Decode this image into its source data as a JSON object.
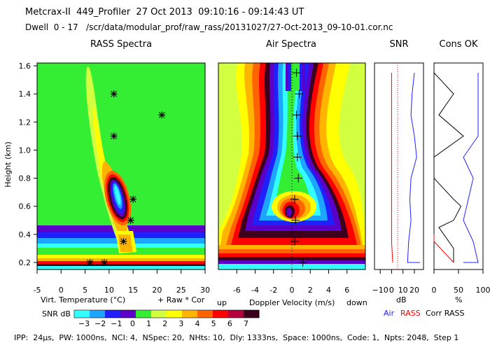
{
  "header": {
    "line1": "Metcrax-II  449_Profiler  27 Oct 2013  09:10:16 - 09:14:43 UT",
    "line2": "Dwell  0 - 17   /scr/data/modular_prof/raw_rass/20131027/27-Oct-2013_09-10-01.cor.nc"
  },
  "footer": "IPP:  24μs,  PW: 1000ns,  NCI: 4,  NSpec: 20,  NHts: 10,  Dly: 1333ns,  Space: 1000ns,  Code: 1,  Npts: 2048,  Step 1",
  "colors": {
    "background_field": "#33ee33",
    "scale": [
      "#33ffff",
      "#1ea5ff",
      "#2020ff",
      "#5a00c8",
      "#33ee33",
      "#d2ff40",
      "#ffff00",
      "#ffb400",
      "#ff6400",
      "#ff0000",
      "#b4003c",
      "#3c001e"
    ]
  },
  "chart_data": [
    {
      "type": "heatmap",
      "title": "RASS Spectra",
      "ylabel": "Height (km)",
      "xlabel": "Virt. Temperature (°C)",
      "xlabel_suffix": "+ Raw  * Cor",
      "xlim": [
        -5,
        30
      ],
      "ylim": [
        0.15,
        1.62
      ],
      "xticks": [
        "-5",
        "0",
        "5",
        "10",
        "15",
        "20",
        "25",
        "30"
      ],
      "yticks": [
        "0.2",
        "0.4",
        "0.6",
        "0.8",
        "1.0",
        "1.2",
        "1.4",
        "1.6"
      ],
      "raw_points": [
        {
          "x": 11,
          "y": 1.4
        },
        {
          "x": 21,
          "y": 1.25
        },
        {
          "x": 11,
          "y": 1.1
        },
        {
          "x": 15,
          "y": 0.65
        },
        {
          "x": 14.5,
          "y": 0.5
        },
        {
          "x": 13,
          "y": 0.35
        },
        {
          "x": 9,
          "y": 0.2
        }
      ],
      "cor_points": [
        {
          "x": 11,
          "y": 1.4
        },
        {
          "x": 21,
          "y": 1.25
        },
        {
          "x": 11,
          "y": 1.1
        },
        {
          "x": 15,
          "y": 0.65
        },
        {
          "x": 14.5,
          "y": 0.5
        },
        {
          "x": 13,
          "y": 0.35
        },
        {
          "x": 9,
          "y": 0.2
        },
        {
          "x": 6,
          "y": 0.2
        }
      ]
    },
    {
      "type": "heatmap",
      "title": "Air Spectra",
      "xlabel": "Doppler Velocity (m/s)",
      "xlabel_left": "up",
      "xlabel_right": "down",
      "xlim": [
        -8,
        8
      ],
      "ylim": [
        0.15,
        1.62
      ],
      "xticks": [
        "-6",
        "-4",
        "-2",
        "0",
        "2",
        "4",
        "6"
      ],
      "points": [
        {
          "x": 0.5,
          "y": 1.55
        },
        {
          "x": 0.8,
          "y": 1.4
        },
        {
          "x": 0.5,
          "y": 1.25
        },
        {
          "x": 0.6,
          "y": 1.1
        },
        {
          "x": 0.6,
          "y": 0.95
        },
        {
          "x": 0.7,
          "y": 0.8
        },
        {
          "x": 0.3,
          "y": 0.65
        },
        {
          "x": 0.4,
          "y": 0.5
        },
        {
          "x": 0.3,
          "y": 0.35
        },
        {
          "x": 1.2,
          "y": 0.2
        }
      ]
    },
    {
      "type": "line",
      "title": "SNR",
      "xlabel": "dB",
      "xticks": [
        "−10",
        "0",
        "10",
        "20"
      ],
      "xlim": [
        -15,
        28
      ],
      "ylim": [
        0.15,
        1.62
      ],
      "series": [
        {
          "name": "Air",
          "color": "#2020ff",
          "x": [
            20,
            18,
            17,
            20,
            22,
            17,
            16,
            17,
            15,
            14,
            17,
            20,
            25,
            21
          ],
          "y": [
            1.55,
            1.4,
            1.25,
            1.1,
            0.95,
            0.8,
            0.65,
            0.5,
            0.35,
            0.2,
            0.2,
            0.2,
            0.2,
            0.2
          ]
        },
        {
          "name": "RASS",
          "color": "#ff0000",
          "x": [
            0,
            0,
            0,
            0,
            0,
            0,
            0,
            0,
            0,
            1
          ],
          "y": [
            1.55,
            1.4,
            1.25,
            1.1,
            0.95,
            0.8,
            0.65,
            0.5,
            0.35,
            0.2
          ]
        }
      ]
    },
    {
      "type": "line",
      "title": "Cons OK",
      "xlabel": "%",
      "xticks": [
        "0",
        "50",
        "100"
      ],
      "xlim": [
        0,
        100
      ],
      "ylim": [
        0.15,
        1.62
      ],
      "series": [
        {
          "name": "Corr RASS",
          "color": "#000000",
          "x": [
            0,
            40,
            10,
            60,
            0,
            0,
            0,
            40,
            55,
            40,
            10,
            40,
            40
          ],
          "y": [
            1.55,
            1.4,
            1.25,
            1.1,
            0.95,
            0.85,
            0.8,
            0.65,
            0.6,
            0.5,
            0.45,
            0.3,
            0.2
          ]
        },
        {
          "name": "Air",
          "color": "#2020ff",
          "x": [
            90,
            90,
            90,
            90,
            60,
            80,
            70,
            60,
            80,
            90,
            60
          ],
          "y": [
            1.55,
            1.4,
            1.25,
            1.1,
            0.95,
            0.8,
            0.65,
            0.5,
            0.35,
            0.2,
            0.2
          ]
        },
        {
          "name": "RASS",
          "color": "#ff0000",
          "x": [
            0,
            0,
            40
          ],
          "y": [
            0.4,
            0.35,
            0.2
          ]
        }
      ]
    }
  ],
  "snr_legend": {
    "title": "SNR dB",
    "ticks": [
      "−3",
      "−2",
      "−1",
      "0",
      "1",
      "2",
      "3",
      "4",
      "5",
      "6",
      "7"
    ]
  },
  "legend_air": "Air",
  "legend_rass": "RASS",
  "legend_corr": "Corr RASS"
}
